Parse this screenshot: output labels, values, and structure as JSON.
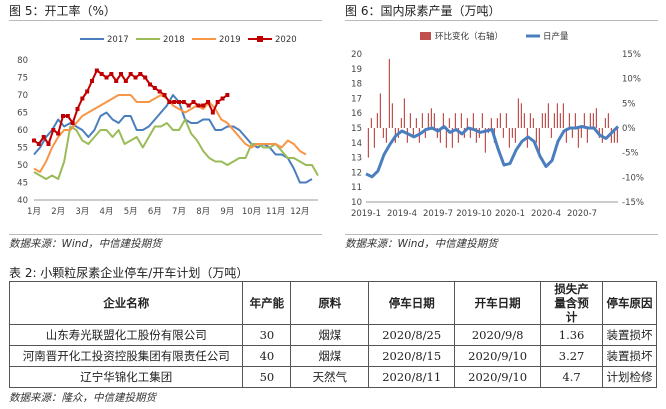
{
  "fig5": {
    "title": "图 5：开工率（%）",
    "source": "数据来源：Wind，中信建投期货"
  },
  "fig6": {
    "title": "图 6：国内尿素产量（万吨）",
    "source": "数据来源：Wind，中信建投期货"
  },
  "table": {
    "title": "表 2: 小颗粒尿素企业停车/开车计划（万吨）",
    "headers": [
      "企业名称",
      "年产能",
      "原料",
      "停车日期",
      "开车日期",
      "损失产量含预计",
      "停车原因"
    ],
    "rows": [
      [
        "山东寿光联盟化工股份有限公司",
        "30",
        "烟煤",
        "2020/8/25",
        "2020/9/8",
        "1.36",
        "装置损坏"
      ],
      [
        "河南晋开化工投资控股集团有限责任公司",
        "40",
        "烟煤",
        "2020/8/15",
        "2020/9/10",
        "3.27",
        "装置损坏"
      ],
      [
        "辽宁华锦化工集团",
        "50",
        "天然气",
        "2020/8/11",
        "2020/9/10",
        "4.7",
        "计划检修"
      ]
    ],
    "source": "数据来源：隆众，中信建投期货"
  },
  "chart_data": [
    {
      "type": "line",
      "ylim": [
        40,
        80
      ],
      "yticks": [
        40,
        45,
        50,
        55,
        60,
        65,
        70,
        75,
        80
      ],
      "xticks": [
        "1月",
        "2月",
        "3月",
        "4月",
        "5月",
        "6月",
        "7月",
        "8月",
        "9月",
        "10月",
        "11月",
        "12月"
      ],
      "legend_position": "top",
      "series": [
        {
          "name": "2017",
          "color": "#4a7ebf",
          "marker": "none",
          "x": [
            1.0,
            1.25,
            1.5,
            1.75,
            2.0,
            2.25,
            2.5,
            2.75,
            3.0,
            3.25,
            3.5,
            3.75,
            4.0,
            4.25,
            4.5,
            4.75,
            5.0,
            5.25,
            5.5,
            5.75,
            6.0,
            6.25,
            6.5,
            6.75,
            7.0,
            7.25,
            7.5,
            7.75,
            8.0,
            8.25,
            8.5,
            8.75,
            9.0,
            9.25,
            9.5,
            9.75,
            10.0,
            10.25,
            10.5,
            10.75,
            11.0,
            11.25,
            11.5,
            11.75,
            12.0,
            12.25,
            12.5
          ],
          "y": [
            53,
            55,
            58,
            60,
            63,
            61,
            62,
            61,
            60,
            58,
            60,
            64,
            65,
            63,
            62,
            64,
            64,
            60,
            60,
            61,
            63,
            65,
            67,
            70,
            68,
            63,
            62,
            62,
            63,
            63,
            60,
            60,
            61,
            61,
            60,
            58,
            56,
            55,
            56,
            55,
            53,
            53,
            52,
            49,
            45,
            45,
            46
          ]
        },
        {
          "name": "2018",
          "color": "#9bbb59",
          "marker": "none",
          "x": [
            1.0,
            1.25,
            1.5,
            1.75,
            2.0,
            2.25,
            2.5,
            2.75,
            3.0,
            3.25,
            3.5,
            3.75,
            4.0,
            4.25,
            4.5,
            4.75,
            5.0,
            5.25,
            5.5,
            5.75,
            6.0,
            6.25,
            6.5,
            6.75,
            7.0,
            7.25,
            7.5,
            7.75,
            8.0,
            8.25,
            8.5,
            8.75,
            9.0,
            9.25,
            9.5,
            9.75,
            10.0,
            10.25,
            10.5,
            10.75,
            11.0,
            11.25,
            11.5,
            11.75,
            12.0,
            12.25,
            12.5,
            12.75
          ],
          "y": [
            48,
            47,
            46,
            47,
            46,
            51,
            61,
            60,
            57,
            56,
            58,
            60,
            60,
            58,
            60,
            56,
            57,
            58,
            55,
            58,
            61,
            61,
            62,
            60,
            60,
            63,
            59,
            57,
            54,
            52,
            51,
            51,
            50,
            51,
            52,
            52,
            56,
            56,
            55,
            55,
            56,
            54,
            52,
            52,
            51,
            50,
            50,
            47
          ]
        },
        {
          "name": "2019",
          "color": "#f79646",
          "marker": "none",
          "x": [
            1.0,
            1.25,
            1.5,
            1.75,
            2.0,
            2.25,
            2.5,
            2.75,
            3.0,
            3.25,
            3.5,
            3.75,
            4.0,
            4.25,
            4.5,
            4.75,
            5.0,
            5.25,
            5.5,
            5.75,
            6.0,
            6.25,
            6.5,
            6.75,
            7.0,
            7.25,
            7.5,
            7.75,
            8.0,
            8.25,
            8.5,
            8.75,
            9.0,
            9.25,
            9.5,
            9.75,
            10.0,
            10.25,
            10.5,
            10.75,
            11.0,
            11.25,
            11.5,
            11.75,
            12.0,
            12.25
          ],
          "y": [
            49,
            48,
            51,
            55,
            58,
            60,
            60,
            62,
            64,
            65,
            66,
            67,
            68,
            69,
            70,
            70,
            70,
            68,
            68,
            68,
            69,
            70,
            69,
            67,
            66,
            65,
            66,
            67,
            66,
            68,
            66,
            63,
            62,
            60,
            58,
            56,
            55,
            56,
            56,
            56,
            56,
            55,
            57,
            56,
            54,
            53
          ]
        },
        {
          "name": "2020",
          "color": "#c00000",
          "marker": "square",
          "x": [
            1.0,
            1.2,
            1.4,
            1.6,
            1.8,
            2.0,
            2.2,
            2.4,
            2.6,
            2.8,
            3.0,
            3.2,
            3.4,
            3.6,
            3.8,
            4.0,
            4.2,
            4.4,
            4.6,
            4.8,
            5.0,
            5.2,
            5.4,
            5.6,
            5.8,
            6.0,
            6.2,
            6.4,
            6.6,
            6.8,
            7.0,
            7.2,
            7.4,
            7.6,
            7.8,
            8.0,
            8.2,
            8.4,
            8.6,
            8.8,
            9.0
          ],
          "y": [
            57,
            56,
            58,
            56,
            60,
            59,
            64,
            64,
            62,
            66,
            69,
            71,
            74,
            77,
            76,
            75,
            76,
            74,
            76,
            74,
            76,
            75,
            76,
            75,
            73,
            72,
            71,
            70,
            68,
            68,
            68,
            68,
            67,
            68,
            67,
            67,
            68,
            65,
            68,
            69,
            70
          ]
        }
      ]
    },
    {
      "type": "bar",
      "ylim_left": [
        10,
        20
      ],
      "yticks_left": [
        10,
        11,
        12,
        13,
        14,
        15,
        16,
        17,
        18,
        19,
        20
      ],
      "ylim_right": [
        -15,
        15
      ],
      "yticks_right": [
        "-15%",
        "-10%",
        "-5%",
        "0%",
        "5%",
        "10%",
        "15%"
      ],
      "xticks": [
        "2019-1",
        "2019-4",
        "2019-7",
        "2019-10",
        "2020-1",
        "2020-4",
        "2020-7"
      ],
      "legend_position": "top",
      "series": [
        {
          "name": "环比变化（右轴）",
          "type": "bar",
          "axis": "right",
          "color": "#c0504d",
          "x": [
            0.2,
            0.45,
            0.7,
            0.95,
            1.2,
            1.45,
            1.7,
            1.95,
            2.2,
            2.45,
            2.7,
            2.95,
            3.2,
            3.45,
            3.7,
            3.95,
            4.2,
            4.45,
            4.7,
            4.95,
            5.2,
            5.45,
            5.7,
            5.95,
            6.2,
            6.45,
            6.7,
            6.95,
            7.2,
            7.45,
            7.7,
            7.95,
            8.2,
            8.45,
            8.7,
            8.95,
            9.2,
            9.45,
            9.7,
            9.95,
            10.2,
            10.45,
            10.7,
            10.95,
            11.2,
            11.45,
            11.7,
            11.95,
            12.2,
            12.45,
            12.7,
            12.95,
            13.2,
            13.45,
            13.7,
            13.95,
            14.2,
            14.45,
            14.7,
            14.95,
            15.2,
            15.45,
            15.7,
            15.95,
            16.2,
            16.45,
            16.7,
            16.95,
            17.2,
            17.45,
            17.7,
            17.95,
            18.2,
            18.45,
            18.7,
            18.95,
            19.2,
            19.45,
            19.7,
            19.95,
            20.2,
            20.45,
            20.7,
            20.95
          ],
          "y": [
            -6,
            2,
            -4,
            3,
            7,
            -2,
            -3,
            14,
            5,
            -3,
            -2,
            2,
            6,
            -3,
            3,
            -2,
            2,
            -3,
            3,
            -2,
            3,
            4,
            3,
            -2,
            -3,
            3,
            -4,
            2,
            -4,
            3,
            -3,
            3,
            -2,
            2,
            -2,
            3,
            -3,
            -2,
            3,
            -5,
            -1,
            2,
            -3,
            2,
            3,
            -2,
            3,
            -4,
            -2,
            -3,
            6,
            5,
            3,
            -4,
            3,
            2,
            -3,
            -6,
            3,
            3,
            5,
            -2,
            3,
            5,
            3,
            5,
            -3,
            3,
            -2,
            3,
            -4,
            -2,
            3,
            -3,
            3,
            3,
            4,
            -2,
            -3,
            2,
            3,
            -3,
            -3,
            -3
          ]
        },
        {
          "name": "日产量",
          "type": "line",
          "axis": "left",
          "color": "#4a7ebf",
          "x": [
            0,
            0.5,
            1,
            1.5,
            2,
            2.5,
            3,
            3.5,
            4,
            4.5,
            5,
            5.5,
            6,
            6.5,
            7,
            7.5,
            8,
            8.5,
            9,
            9.5,
            10,
            10.5,
            11,
            11.5,
            12,
            12.5,
            13,
            13.5,
            14,
            14.5,
            15,
            15.5,
            16,
            16.5,
            17,
            17.5,
            18,
            18.5,
            19,
            19.5,
            20,
            20.5,
            21
          ],
          "y": [
            11.9,
            11.7,
            12.1,
            13.2,
            13.9,
            14.5,
            14.8,
            14.6,
            14.4,
            14.6,
            14.9,
            15.0,
            14.8,
            15.1,
            14.7,
            14.9,
            14.6,
            15.0,
            14.9,
            14.7,
            14.8,
            14.9,
            13.6,
            12.5,
            12.6,
            13.5,
            14.1,
            14.4,
            14.1,
            13.1,
            12.4,
            12.8,
            14.1,
            14.8,
            15.0,
            15.0,
            15.1,
            15.0,
            15.0,
            14.5,
            14.3,
            14.7,
            15.1
          ]
        }
      ]
    }
  ]
}
